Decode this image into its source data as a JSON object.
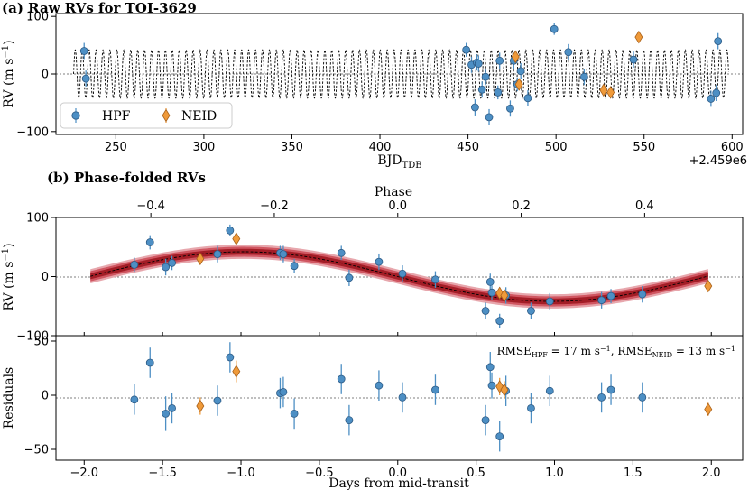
{
  "chart_data": [
    {
      "panel": "a",
      "type": "scatter",
      "title": "(a) Raw RVs for TOI-3629",
      "xlabel": "BJD",
      "xlabel_sub": "TDB",
      "x_offset_label": "+2.459e6",
      "ylabel": "RV (m s",
      "ylabel_sup": "−1",
      "ylabel_close": ")",
      "xlim": [
        216,
        606
      ],
      "ylim": [
        -105,
        105
      ],
      "xticks": [
        250,
        300,
        350,
        400,
        450,
        500,
        550,
        600
      ],
      "yticks": [
        -100,
        0,
        100
      ],
      "model": {
        "amplitude": 42,
        "period_days": 3.937,
        "t_start": 226,
        "t_end": 598
      },
      "legend": {
        "position": "lower-left",
        "entries": [
          "HPF",
          "NEID"
        ]
      },
      "series": [
        {
          "name": "HPF",
          "marker": "circle",
          "color": "#4d8fc4",
          "points": [
            [
              232,
              40,
              14
            ],
            [
              233,
              -8,
              14
            ],
            [
              449,
              42,
              12
            ],
            [
              452,
              16,
              14
            ],
            [
              454,
              -58,
              14
            ],
            [
              455,
              20,
              14
            ],
            [
              456,
              18,
              14
            ],
            [
              458,
              -27,
              14
            ],
            [
              460,
              -5,
              14
            ],
            [
              462,
              -75,
              14
            ],
            [
              467,
              -32,
              12
            ],
            [
              468,
              23,
              14
            ],
            [
              474,
              -60,
              14
            ],
            [
              476,
              23,
              14
            ],
            [
              478,
              -18,
              12
            ],
            [
              480,
              5,
              14
            ],
            [
              484,
              -42,
              14
            ],
            [
              499,
              78,
              10
            ],
            [
              507,
              38,
              14
            ],
            [
              516,
              -5,
              14
            ],
            [
              544,
              25,
              14
            ],
            [
              588,
              -43,
              14
            ],
            [
              591,
              -33,
              14
            ],
            [
              592,
              57,
              14
            ]
          ]
        },
        {
          "name": "NEID",
          "marker": "diamond",
          "color": "#ef9a3a",
          "points": [
            [
              477,
              30,
              10
            ],
            [
              479,
              -18,
              10
            ],
            [
              527,
              -28,
              8
            ],
            [
              531,
              -32,
              8
            ],
            [
              547,
              64,
              8
            ]
          ]
        }
      ]
    },
    {
      "panel": "b",
      "type": "scatter",
      "title": "(b) Phase-folded RVs",
      "top_axis_label": "Phase",
      "phase_ticks": [
        "−0.4",
        "−0.2",
        "0.0",
        "0.2",
        "0.4"
      ],
      "phase_tick_values": [
        -0.4,
        -0.2,
        0.0,
        0.2,
        0.4
      ],
      "xlabel": "Days from mid-transit",
      "ylabel": "RV (m s",
      "ylabel_sup": "−1",
      "ylabel_close": ")",
      "xlim": [
        -2.18,
        2.2
      ],
      "ylim": [
        -100,
        100
      ],
      "xticks": [
        -2.0,
        -1.5,
        -1.0,
        -0.5,
        0.0,
        0.5,
        1.0,
        1.5,
        2.0
      ],
      "xtick_labels": [
        "−2.0",
        "−1.5",
        "−1.0",
        "−0.5",
        "0.0",
        "0.5",
        "1.0",
        "1.5",
        "2.0"
      ],
      "yticks": [
        -100,
        0,
        100
      ],
      "period_days": 3.937,
      "model_amplitude": 42,
      "series": [
        {
          "name": "HPF",
          "marker": "circle",
          "color": "#4d8fc4",
          "points": [
            [
              -1.68,
              20,
              12
            ],
            [
              -1.58,
              58,
              12
            ],
            [
              -1.48,
              16,
              14
            ],
            [
              -1.44,
              23,
              12
            ],
            [
              -1.15,
              38,
              14
            ],
            [
              -1.07,
              78,
              10
            ],
            [
              -0.75,
              40,
              12
            ],
            [
              -0.73,
              38,
              14
            ],
            [
              -0.66,
              18,
              12
            ],
            [
              -0.36,
              40,
              12
            ],
            [
              -0.31,
              -2,
              14
            ],
            [
              -0.12,
              25,
              14
            ],
            [
              0.03,
              5,
              14
            ],
            [
              0.24,
              -5,
              14
            ],
            [
              0.56,
              -58,
              14
            ],
            [
              0.59,
              -9,
              14
            ],
            [
              0.6,
              -27,
              12
            ],
            [
              0.65,
              -75,
              12
            ],
            [
              0.69,
              -32,
              14
            ],
            [
              0.85,
              -58,
              14
            ],
            [
              0.97,
              -42,
              14
            ],
            [
              1.3,
              -40,
              14
            ],
            [
              1.36,
              -33,
              12
            ],
            [
              1.56,
              -30,
              14
            ]
          ]
        },
        {
          "name": "NEID",
          "marker": "diamond",
          "color": "#ef9a3a",
          "points": [
            [
              -1.26,
              30,
              8
            ],
            [
              -1.03,
              64,
              10
            ],
            [
              0.65,
              -28,
              10
            ],
            [
              0.68,
              -32,
              10
            ],
            [
              1.98,
              -16,
              8
            ]
          ]
        }
      ]
    },
    {
      "panel": "residuals",
      "type": "scatter",
      "ylabel": "Residuals",
      "xlim": [
        -2.18,
        2.2
      ],
      "ylim": [
        -60,
        55
      ],
      "yticks": [
        -50,
        0,
        50
      ],
      "annotation": {
        "part1": "RMSE",
        "sub1": "HPF",
        "part2": " = 17 m s",
        "sup2": "−1",
        "part3": ", RMSE",
        "sub3": "NEID",
        "part4": " = 13 m s",
        "sup4": "−1"
      },
      "series": [
        {
          "name": "HPF",
          "marker": "circle",
          "color": "#4d8fc4",
          "points": [
            [
              -1.68,
              -4,
              14
            ],
            [
              -1.58,
              30,
              14
            ],
            [
              -1.48,
              -17,
              16
            ],
            [
              -1.44,
              -12,
              14
            ],
            [
              -1.15,
              -5,
              14
            ],
            [
              -1.07,
              35,
              14
            ],
            [
              -0.75,
              2,
              14
            ],
            [
              -0.73,
              3,
              14
            ],
            [
              -0.66,
              -17,
              14
            ],
            [
              -0.36,
              15,
              14
            ],
            [
              -0.31,
              -23,
              14
            ],
            [
              -0.12,
              9,
              14
            ],
            [
              0.03,
              -2,
              14
            ],
            [
              0.24,
              5,
              14
            ],
            [
              0.56,
              -23,
              14
            ],
            [
              0.59,
              26,
              14
            ],
            [
              0.6,
              9,
              12
            ],
            [
              0.65,
              -38,
              14
            ],
            [
              0.69,
              4,
              14
            ],
            [
              0.85,
              -12,
              14
            ],
            [
              0.97,
              4,
              14
            ],
            [
              1.3,
              -2,
              14
            ],
            [
              1.36,
              5,
              14
            ],
            [
              1.56,
              -2,
              14
            ]
          ]
        },
        {
          "name": "NEID",
          "marker": "diamond",
          "color": "#ef9a3a",
          "points": [
            [
              -1.26,
              -10,
              8
            ],
            [
              -1.03,
              22,
              10
            ],
            [
              0.65,
              8,
              8
            ],
            [
              0.68,
              5,
              8
            ],
            [
              1.98,
              -13,
              6
            ]
          ]
        }
      ]
    }
  ]
}
